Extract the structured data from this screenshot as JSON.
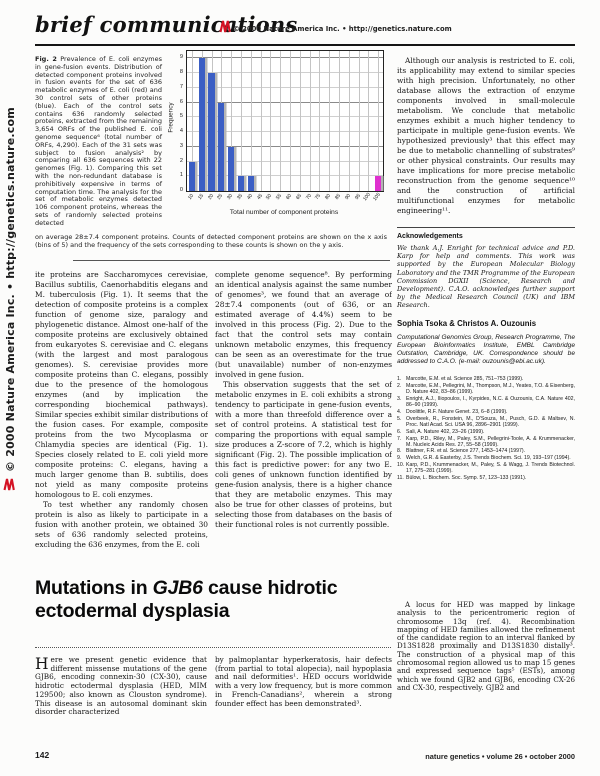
{
  "header": {
    "section_label": "brief communications",
    "copyright_line": "© 2000 Nature America Inc. • http://genetics.nature.com"
  },
  "sidebar": {
    "copyright_vertical": "© 2000 Nature America Inc. • http://genetics.nature.com"
  },
  "figure": {
    "label": "Fig. 2",
    "caption": " Prevalence of E. coli enzymes in gene-fusion events. Distribution of detected component proteins involved in fusion events for the set of 636 metabolic enzymes of E. coli (red) and 30 control sets of other proteins (blue). Each of the control sets contains 636 randomly selected proteins, extracted from the remaining 3,654 ORFs of the published E. coli genome sequence⁶ (total number of ORFs, 4,290). Each of the 31 sets was subject to fusion analysis² by comparing all 636 sequences with 22 genomes (Fig. 1). Comparing this set with the non-redundant database is prohibitively expensive in terms of computation time. The analysis for the set of metabolic enzymes detected 106 component proteins, whereas the sets of randomly selected proteins detected",
    "caption_bottom": "on average 28±7.4 component proteins. Counts of detected component proteins are shown on the x axis (bins of 5) and the frequency of the sets corresponding to these counts is shown on the y axis."
  },
  "chart_data": {
    "type": "bar",
    "title": "",
    "xlabel": "Total number of component proteins",
    "ylabel": "Frequency",
    "categories": [
      "10",
      "15",
      "20",
      "25",
      "30",
      "35",
      "40",
      "45",
      "50",
      "55",
      "60",
      "65",
      "70",
      "75",
      "80",
      "85",
      "90",
      "95",
      "100",
      "105"
    ],
    "values": [
      2,
      9,
      8,
      6,
      3,
      1,
      1,
      0,
      0,
      0,
      0,
      0,
      0,
      0,
      0,
      0,
      0,
      0,
      0,
      1
    ],
    "yticks": [
      0,
      1,
      2,
      3,
      4,
      5,
      6,
      7,
      8,
      9
    ],
    "ylim": [
      0,
      9.5
    ],
    "grid": true,
    "legend": "none",
    "bar_color": "#3b5ec4",
    "highlight_color": "#df30cf",
    "highlight_index": 19,
    "note": "blue = 30 control sets of 636 randomly selected proteins; magenta = set of 636 E. coli metabolic enzymes (106 component proteins)"
  },
  "article1": {
    "col1_p1": "ite proteins are Saccharomyces cerevisiae, Bacillus subtilis, Caenorhabditis elegans and M. tuberculosis (Fig. 1). It seems that the detection of composite proteins is a complex function of genome size, paralogy and phylogenetic distance. Almost one-half of the composite proteins are exclusively obtained from eukaryotes S. cerevisiae and C. elegans (with the largest and most paralogous genomes). S. cerevisiae provides more composite proteins than C. elegans, possibly due to the presence of the homologous enzymes (and by implication the corresponding biochemical pathways). Similar species exhibit similar distributions of the fusion cases. For example, composite proteins from the two Mycoplasma or Chlamydia species are identical (Fig. 1). Species closely related to E. coli yield more composite proteins: C. elegans, having a much larger genome than B. subtilis, does not yield as many composite proteins homologous to E. coli enzymes.",
    "col1_p2": "To test whether any randomly chosen protein is also as likely to participate in a fusion with another protein, we obtained 30 sets of 636 randomly selected proteins, excluding the 636 enzymes, from the E. coli",
    "col2_p1": "complete genome sequence⁸. By performing an identical analysis against the same number of genomes³, we found that an average of 28±7.4 components (out of 636, or an estimated average of 4.4%) seem to be involved in this process (Fig. 2). Due to the fact that the control sets may contain unknown metabolic enzymes, this frequency can be seen as an overestimate for the true (but unavailable) number of non-enzymes involved in gene fusion.",
    "col2_p2": "This observation suggests that the set of metabolic enzymes in E. coli exhibits a strong tendency to participate in gene-fusion events, with a more than threefold difference over a set of control proteins. A statistical test for comparing the proportions with equal sample size produces a Z-score of 7.2, which is highly significant (Fig. 2). The possible implication of this fact is predictive power: for any two E. coli genes of unknown function identified by gene-fusion analysis, there is a higher chance that they are metabolic enzymes. This may also be true for other classes of proteins, but selecting those from databases on the basis of their functional roles is not currently possible.",
    "col3_p1": "Although our analysis is restricted to E. coli, its applicability may extend to similar species with high precision. Unfortunately, no other database allows the extraction of enzyme components involved in small-molecule metabolism. We conclude that metabolic enzymes exhibit a much higher tendency to participate in multiple gene-fusion events. We hypothesized previously³ that this effect may be due to metabolic channelling of substrates⁹ or other physical constraints. Our results may have implications for more precise metabolic reconstruction from the genome sequence¹⁰ and the construction of artificial multifunctional enzymes for metabolic engineering¹¹.",
    "ack_heading": "Acknowledgements",
    "ack_text": "We thank A.J. Enright for technical advice and P.D. Karp for help and comments. This work was supported by the European Molecular Biology Laboratory and the TMR Programme of the European Commission DGXII (Science, Research and Development). C.A.O. acknowledges further support by the Medical Research Council (UK) and IBM Research.",
    "authors": "Sophia Tsoka & Christos A. Ouzounis",
    "affiliation": "Computational Genomics Group, Research Programme, The European Bioinformatics Institute, EMBL Cambridge Outstation, Cambridge, UK. Correspondence should be addressed to C.A.O. (e-mail: ouzounis@ebi.ac.uk).",
    "references": [
      {
        "n": "1.",
        "text": "Marcotte, E.M. et al. Science 285, 751–753 (1999)."
      },
      {
        "n": "2.",
        "text": "Marcotte, E.M., Pellegrini, M., Thompson, M.J., Yeates, T.O. & Eisenberg, D. Nature 402, 83–86 (1999)."
      },
      {
        "n": "3.",
        "text": "Enright, A.J., Iliopoulos, I., Kyrpides, N.C. & Ouzounis, C.A. Nature 402, 86–90 (1999)."
      },
      {
        "n": "4.",
        "text": "Doolittle, R.F. Nature Genet. 23, 6–8 (1999)."
      },
      {
        "n": "5.",
        "text": "Overbeek, R., Fonstein, M., D'Souza, M., Pusch, G.D. & Maltsev, N. Proc. Natl Acad. Sci. USA 96, 2896–2901 (1999)."
      },
      {
        "n": "6.",
        "text": "Sali, A. Nature 402, 23–26 (1999)."
      },
      {
        "n": "7.",
        "text": "Karp, P.D., Riley, M., Paley, S.M., Pellegrini-Toole, A. & Krummenacker, M. Nucleic Acids Res. 27, 55–58 (1999)."
      },
      {
        "n": "8.",
        "text": "Blattner, F.R. et al. Science 277, 1453–1474 (1997)."
      },
      {
        "n": "9.",
        "text": "Welch, G.R. & Easterby, J.S. Trends Biochem. Sci. 19, 193–197 (1994)."
      },
      {
        "n": "10.",
        "text": "Karp, P.D., Krummenacker, M., Paley, S. & Wagg, J. Trends Biotechnol. 17, 275–281 (1999)."
      },
      {
        "n": "11.",
        "text": "Bülow, L. Biochem. Soc. Symp. 57, 123–133 (1991)."
      }
    ]
  },
  "article2": {
    "title_pre": "Mutations in ",
    "title_gene": "GJB6",
    "title_post": " cause hidrotic",
    "title_line2": "ectodermal dysplasia",
    "drop_cap": "H",
    "col1_rest": "ere we present genetic evidence that different missense mutations of the gene GJB6, encoding connexin-30 (CX-30), cause hidrotic ectodermal dysplasia (HED, MIM 129500; also known as Clouston syndrome). This disease is an autosomal dominant skin disorder characterized",
    "col2": "by palmoplantar hyperkeratosis, hair defects (from partial to total alopecia), nail hypoplasia and nail deformities¹. HED occurs worldwide with a very low frequency, but is more common in French-Canadians², wherein a strong founder effect has been demonstrated³.",
    "col3": "A locus for HED was mapped by linkage analysis to the pericentromeric region of chromosome 13q (ref. 4). Recombination mapping of HED families allowed the refinement of the candidate region to an interval flanked by D13S1828 proximally and D13S1830 distally³. The construction of a physical map of this chromosomal region allowed us to map 15 genes and expressed sequence tags⁵ (ESTs), among which we found GJB2 and GJB6, encoding CX-26 and CX-30, respectively. GJB2 and"
  },
  "footer": {
    "page_number": "142",
    "journal_line": "nature genetics • volume 26 • october 2000"
  }
}
